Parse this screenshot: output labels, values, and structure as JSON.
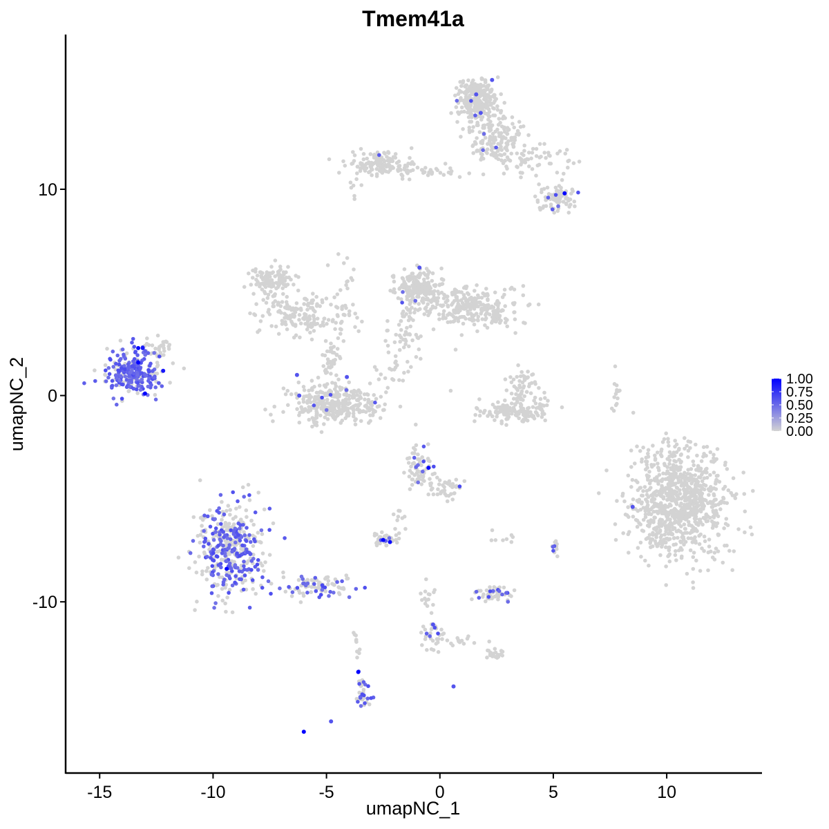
{
  "chart_data": {
    "type": "scatter",
    "title": "Tmem41a",
    "xlabel": "umapNC_1",
    "ylabel": "umapNC_2",
    "xlim": [
      -16.5,
      14.2
    ],
    "ylim": [
      -18.3,
      17.5
    ],
    "x_ticks": [
      -15,
      -10,
      -5,
      0,
      5,
      10
    ],
    "x_tick_labels": [
      "-15",
      "-10",
      "-5",
      "0",
      "5",
      "10"
    ],
    "y_ticks": [
      -10,
      0,
      10
    ],
    "y_tick_labels": [
      "-10",
      "0",
      "10"
    ],
    "grid": false,
    "colors": {
      "low": "#d3d3d3",
      "high": "#0000ff",
      "axis": "#000000"
    },
    "legend": {
      "position": "right",
      "range": [
        0,
        1
      ],
      "tick_values": [
        0,
        0.25,
        0.5,
        0.75,
        1
      ],
      "tick_labels": [
        "0.00",
        "0.25",
        "0.50",
        "0.75",
        "1.00"
      ]
    },
    "clusters": [
      {
        "cx": -13.6,
        "cy": 1.1,
        "sx": 0.7,
        "sy": 0.65,
        "n": 260,
        "frac": 0.7
      },
      {
        "cx": -12.4,
        "cy": 2.1,
        "sx": 0.35,
        "sy": 0.3,
        "n": 25,
        "frac": 0.2
      },
      {
        "cx": -7.4,
        "cy": 5.6,
        "sx": 0.6,
        "sy": 0.45,
        "n": 110,
        "frac": 0.0
      },
      {
        "cx": -6.2,
        "cy": 3.9,
        "sx": 1.0,
        "sy": 0.6,
        "n": 150,
        "frac": 0.0
      },
      {
        "cx": -4.3,
        "cy": 4.3,
        "sx": 0.4,
        "sy": 1.4,
        "n": 40,
        "frac": 0.02
      },
      {
        "cx": -4.8,
        "cy": 1.8,
        "sx": 0.25,
        "sy": 0.8,
        "n": 40,
        "frac": 0.0
      },
      {
        "cx": -4.6,
        "cy": -0.4,
        "sx": 1.15,
        "sy": 0.55,
        "n": 330,
        "frac": 0.02
      },
      {
        "cx": -1.0,
        "cy": 5.2,
        "sx": 0.6,
        "sy": 0.6,
        "n": 200,
        "frac": 0.01
      },
      {
        "cx": 1.5,
        "cy": 4.3,
        "sx": 1.2,
        "sy": 0.55,
        "n": 260,
        "frac": 0.0
      },
      {
        "cx": -1.5,
        "cy": 3.0,
        "sx": 0.5,
        "sy": 0.8,
        "n": 50,
        "frac": 0.0
      },
      {
        "cx": -2.0,
        "cy": 1.2,
        "sx": 0.7,
        "sy": 0.4,
        "n": 20,
        "frac": 0.0
      },
      {
        "cx": 3.6,
        "cy": 0.4,
        "sx": 0.4,
        "sy": 0.6,
        "n": 60,
        "frac": 0.0
      },
      {
        "cx": 3.4,
        "cy": -0.8,
        "sx": 1.0,
        "sy": 0.3,
        "n": 140,
        "frac": 0.0
      },
      {
        "cx": 7.8,
        "cy": 0.3,
        "sx": 0.15,
        "sy": 0.6,
        "n": 15,
        "frac": 0.0
      },
      {
        "cx": 1.6,
        "cy": 14.3,
        "sx": 0.5,
        "sy": 0.7,
        "n": 260,
        "frac": 0.02
      },
      {
        "cx": 2.5,
        "cy": 12.4,
        "sx": 0.7,
        "sy": 0.9,
        "n": 150,
        "frac": 0.02
      },
      {
        "cx": 4.3,
        "cy": 11.5,
        "sx": 0.9,
        "sy": 0.5,
        "n": 60,
        "frac": 0.0
      },
      {
        "cx": 5.1,
        "cy": 9.5,
        "sx": 0.5,
        "sy": 0.35,
        "n": 80,
        "frac": 0.05
      },
      {
        "cx": -2.6,
        "cy": 11.2,
        "sx": 0.8,
        "sy": 0.4,
        "n": 140,
        "frac": 0.01
      },
      {
        "cx": -0.7,
        "cy": 10.9,
        "sx": 0.9,
        "sy": 0.15,
        "n": 35,
        "frac": 0.0
      },
      {
        "cx": 10.6,
        "cy": -5.2,
        "sx": 1.2,
        "sy": 1.55,
        "n": 900,
        "frac": 0.001
      },
      {
        "cx": -9.2,
        "cy": -7.5,
        "sx": 0.85,
        "sy": 1.45,
        "n": 420,
        "frac": 0.4
      },
      {
        "cx": -5.4,
        "cy": -9.3,
        "sx": 1.0,
        "sy": 0.35,
        "n": 90,
        "frac": 0.25
      },
      {
        "cx": -0.9,
        "cy": -3.5,
        "sx": 0.35,
        "sy": 0.6,
        "n": 70,
        "frac": 0.12
      },
      {
        "cx": 0.3,
        "cy": -4.5,
        "sx": 0.5,
        "sy": 0.35,
        "n": 40,
        "frac": 0.05
      },
      {
        "cx": -2.5,
        "cy": -7.0,
        "sx": 0.3,
        "sy": 0.18,
        "n": 40,
        "frac": 0.1
      },
      {
        "cx": -1.8,
        "cy": -6.1,
        "sx": 0.15,
        "sy": 0.35,
        "n": 10,
        "frac": 0.0
      },
      {
        "cx": 2.4,
        "cy": -9.6,
        "sx": 0.45,
        "sy": 0.2,
        "n": 60,
        "frac": 0.15
      },
      {
        "cx": 5.1,
        "cy": -7.3,
        "sx": 0.15,
        "sy": 0.25,
        "n": 12,
        "frac": 0.3
      },
      {
        "cx": -0.3,
        "cy": -11.7,
        "sx": 0.3,
        "sy": 0.45,
        "n": 30,
        "frac": 0.1
      },
      {
        "cx": 2.4,
        "cy": -12.5,
        "sx": 0.3,
        "sy": 0.15,
        "n": 20,
        "frac": 0.05
      },
      {
        "cx": -3.4,
        "cy": -14.5,
        "sx": 0.2,
        "sy": 0.5,
        "n": 35,
        "frac": 0.5
      },
      {
        "cx": -0.6,
        "cy": -9.8,
        "sx": 0.2,
        "sy": 0.4,
        "n": 15,
        "frac": 0.0
      },
      {
        "cx": 0.8,
        "cy": -11.9,
        "sx": 0.6,
        "sy": 0.12,
        "n": 15,
        "frac": 0.0
      },
      {
        "cx": -3.7,
        "cy": -12.0,
        "sx": 0.1,
        "sy": 0.6,
        "n": 10,
        "frac": 0.0
      },
      {
        "cx": 2.8,
        "cy": -6.9,
        "sx": 0.4,
        "sy": 0.15,
        "n": 8,
        "frac": 0.0
      },
      {
        "cx": -12.0,
        "cy": 2.5,
        "sx": 0.25,
        "sy": 0.2,
        "n": 10,
        "frac": 0.0
      },
      {
        "cx": -3.8,
        "cy": 10.1,
        "sx": 0.2,
        "sy": 0.3,
        "n": 6,
        "frac": 0.0
      }
    ],
    "highlight_points": [
      {
        "x": -13.3,
        "y": 2.3,
        "value": 1.0
      },
      {
        "x": -13.1,
        "y": 2.3,
        "value": 0.9
      },
      {
        "x": -13.3,
        "y": 1.6,
        "value": 1.0
      },
      {
        "x": -13.0,
        "y": 0.1,
        "value": 1.0
      },
      {
        "x": -12.2,
        "y": 1.2,
        "value": 0.9
      },
      {
        "x": -9.4,
        "y": -8.4,
        "value": 1.0
      },
      {
        "x": 5.5,
        "y": 9.8,
        "value": 1.0
      },
      {
        "x": -0.5,
        "y": -3.5,
        "value": 1.0
      },
      {
        "x": -2.5,
        "y": -7.0,
        "value": 1.0
      },
      {
        "x": -2.2,
        "y": -7.1,
        "value": 0.95
      },
      {
        "x": -3.6,
        "y": -13.4,
        "value": 1.0
      },
      {
        "x": -6.0,
        "y": -16.3,
        "value": 1.0
      },
      {
        "x": -4.8,
        "y": -15.8,
        "value": 0.6
      },
      {
        "x": -0.3,
        "y": -11.1,
        "value": 0.6
      },
      {
        "x": 0.6,
        "y": -14.1,
        "value": 0.6
      },
      {
        "x": 8.5,
        "y": -5.4,
        "value": 0.6
      },
      {
        "x": 1.6,
        "y": 14.6,
        "value": 0.6
      },
      {
        "x": 2.3,
        "y": 15.3,
        "value": 0.6
      },
      {
        "x": 1.8,
        "y": 13.7,
        "value": 0.6
      },
      {
        "x": -0.9,
        "y": 6.2,
        "value": 0.6
      },
      {
        "x": -6.3,
        "y": 1.0,
        "value": 0.6
      },
      {
        "x": -6.2,
        "y": 0.0,
        "value": 0.6
      },
      {
        "x": -4.1,
        "y": 0.9,
        "value": 0.6
      }
    ]
  }
}
